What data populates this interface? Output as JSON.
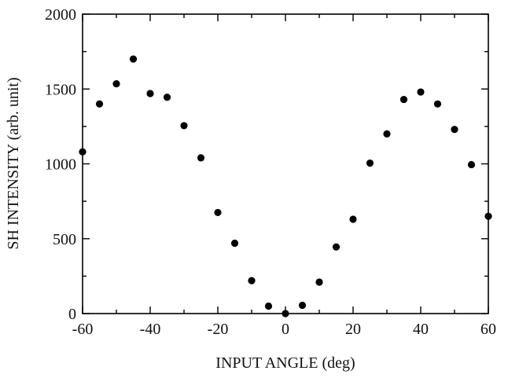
{
  "chart_data": {
    "type": "scatter",
    "title": "",
    "xlabel": "INPUT ANGLE (deg)",
    "ylabel": "SH INTENSITY (arb. unit)",
    "xlim": [
      -60,
      60
    ],
    "ylim": [
      0,
      2000
    ],
    "xticks": [
      -60,
      -40,
      -20,
      0,
      20,
      40,
      60
    ],
    "xtick_labels": [
      "-60",
      "-40",
      "-20",
      "0",
      "20",
      "40",
      "60"
    ],
    "yticks": [
      0,
      500,
      1000,
      1500,
      2000
    ],
    "ytick_labels": [
      "0",
      "500",
      "1000",
      "1500",
      "2000"
    ],
    "x_minor_step": 10,
    "y_minor_step": 250,
    "grid": false,
    "marker_color": "#000000",
    "series": [
      {
        "x": [
          -60,
          -55,
          -50,
          -45,
          -40,
          -35,
          -30,
          -25,
          -20,
          -15,
          -10,
          -5,
          0,
          5,
          10,
          15,
          20,
          25,
          30,
          35,
          40,
          45,
          50,
          55,
          60
        ],
        "y": [
          1080,
          1400,
          1535,
          1700,
          1470,
          1445,
          1255,
          1040,
          675,
          470,
          220,
          50,
          0,
          55,
          210,
          445,
          630,
          1005,
          1200,
          1430,
          1480,
          1400,
          1230,
          995,
          650
        ]
      }
    ]
  }
}
